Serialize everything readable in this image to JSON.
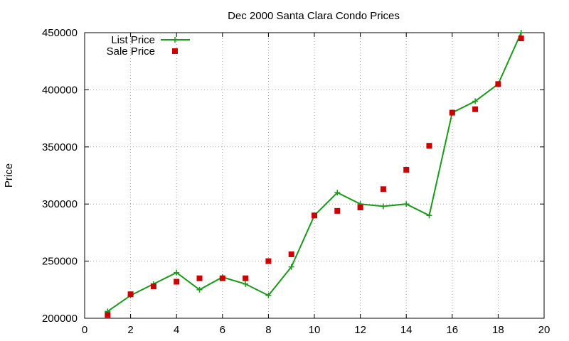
{
  "chart_data": {
    "type": "line",
    "title": "Dec 2000 Santa Clara Condo Prices",
    "xlabel": "",
    "ylabel": "Price",
    "xlim": [
      0,
      20
    ],
    "ylim": [
      200000,
      450000
    ],
    "x_ticks": [
      "0",
      "2",
      "4",
      "6",
      "8",
      "10",
      "12",
      "14",
      "16",
      "18",
      "20"
    ],
    "y_ticks": [
      "200000",
      "250000",
      "300000",
      "350000",
      "400000",
      "450000"
    ],
    "grid": true,
    "legend_position": "top-left",
    "series": [
      {
        "name": "List Price",
        "style": "line-points",
        "marker": "plus",
        "color": "#1a9a1a",
        "x": [
          1,
          2,
          3,
          4,
          5,
          6,
          7,
          8,
          9,
          10,
          11,
          12,
          13,
          14,
          15,
          16,
          17,
          18,
          19
        ],
        "values": [
          206000,
          220000,
          230000,
          240000,
          225000,
          236000,
          230000,
          220000,
          245000,
          290000,
          310000,
          300000,
          298000,
          300000,
          290000,
          380000,
          390000,
          405000,
          450000
        ]
      },
      {
        "name": "Sale Price",
        "style": "points",
        "marker": "square",
        "color": "#cc0000",
        "x": [
          1,
          2,
          3,
          4,
          5,
          6,
          7,
          8,
          9,
          10,
          11,
          12,
          13,
          14,
          15,
          16,
          17,
          18,
          19
        ],
        "values": [
          203000,
          221000,
          228000,
          232000,
          235000,
          235000,
          235000,
          250000,
          256000,
          290000,
          294000,
          297000,
          313000,
          330000,
          351000,
          380000,
          383000,
          405000,
          445000
        ]
      }
    ]
  }
}
